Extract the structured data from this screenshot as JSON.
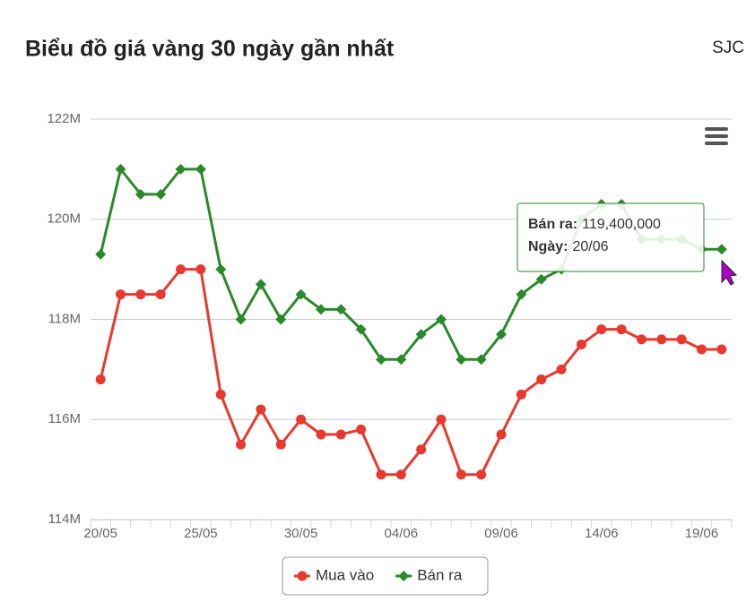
{
  "chart_data": {
    "type": "line",
    "title": "Biểu đồ giá vàng 30 ngày gần nhất",
    "subtitle": "SJC",
    "categories": [
      "20/05",
      null,
      null,
      null,
      null,
      "25/05",
      null,
      null,
      null,
      null,
      "30/05",
      null,
      null,
      null,
      null,
      "04/06",
      null,
      null,
      null,
      null,
      "09/06",
      null,
      null,
      null,
      null,
      "14/06",
      null,
      null,
      null,
      null,
      "19/06",
      null
    ],
    "series": [
      {
        "name": "Mua vào",
        "color": "#e8392f",
        "marker": "circle",
        "values": [
          116800000,
          118500000,
          118500000,
          118500000,
          119000000,
          119000000,
          116500000,
          115500000,
          116200000,
          115500000,
          116000000,
          115700000,
          115700000,
          115800000,
          114900000,
          114900000,
          115400000,
          116000000,
          114900000,
          114900000,
          115700000,
          116500000,
          116800000,
          117000000,
          117500000,
          117800000,
          117800000,
          117600000,
          117600000,
          117600000,
          117400000,
          117400000
        ]
      },
      {
        "name": "Bán ra",
        "color": "#2a8a2a",
        "marker": "diamond",
        "values": [
          119300000,
          121000000,
          120500000,
          120500000,
          121000000,
          121000000,
          119000000,
          118000000,
          118700000,
          118000000,
          118500000,
          118200000,
          118200000,
          117800000,
          117200000,
          117200000,
          117700000,
          118000000,
          117200000,
          117200000,
          117700000,
          118500000,
          118800000,
          119000000,
          120000000,
          120300000,
          120300000,
          119600000,
          119600000,
          119600000,
          119400000,
          119400000
        ]
      }
    ],
    "ylim": [
      114000000,
      122000000
    ],
    "yticks": [
      {
        "value": 114000000,
        "label": "114M"
      },
      {
        "value": 116000000,
        "label": "116M"
      },
      {
        "value": 118000000,
        "label": "118M"
      },
      {
        "value": 120000000,
        "label": "120M"
      },
      {
        "value": 122000000,
        "label": "122M"
      }
    ],
    "grid": true,
    "legend": "bottom",
    "tooltip": {
      "series_label": "Bán ra:",
      "value": {
        "value": 119400000,
        "label": "119,400,000"
      },
      "date_label": "Ngày:",
      "date": "20/06"
    }
  }
}
